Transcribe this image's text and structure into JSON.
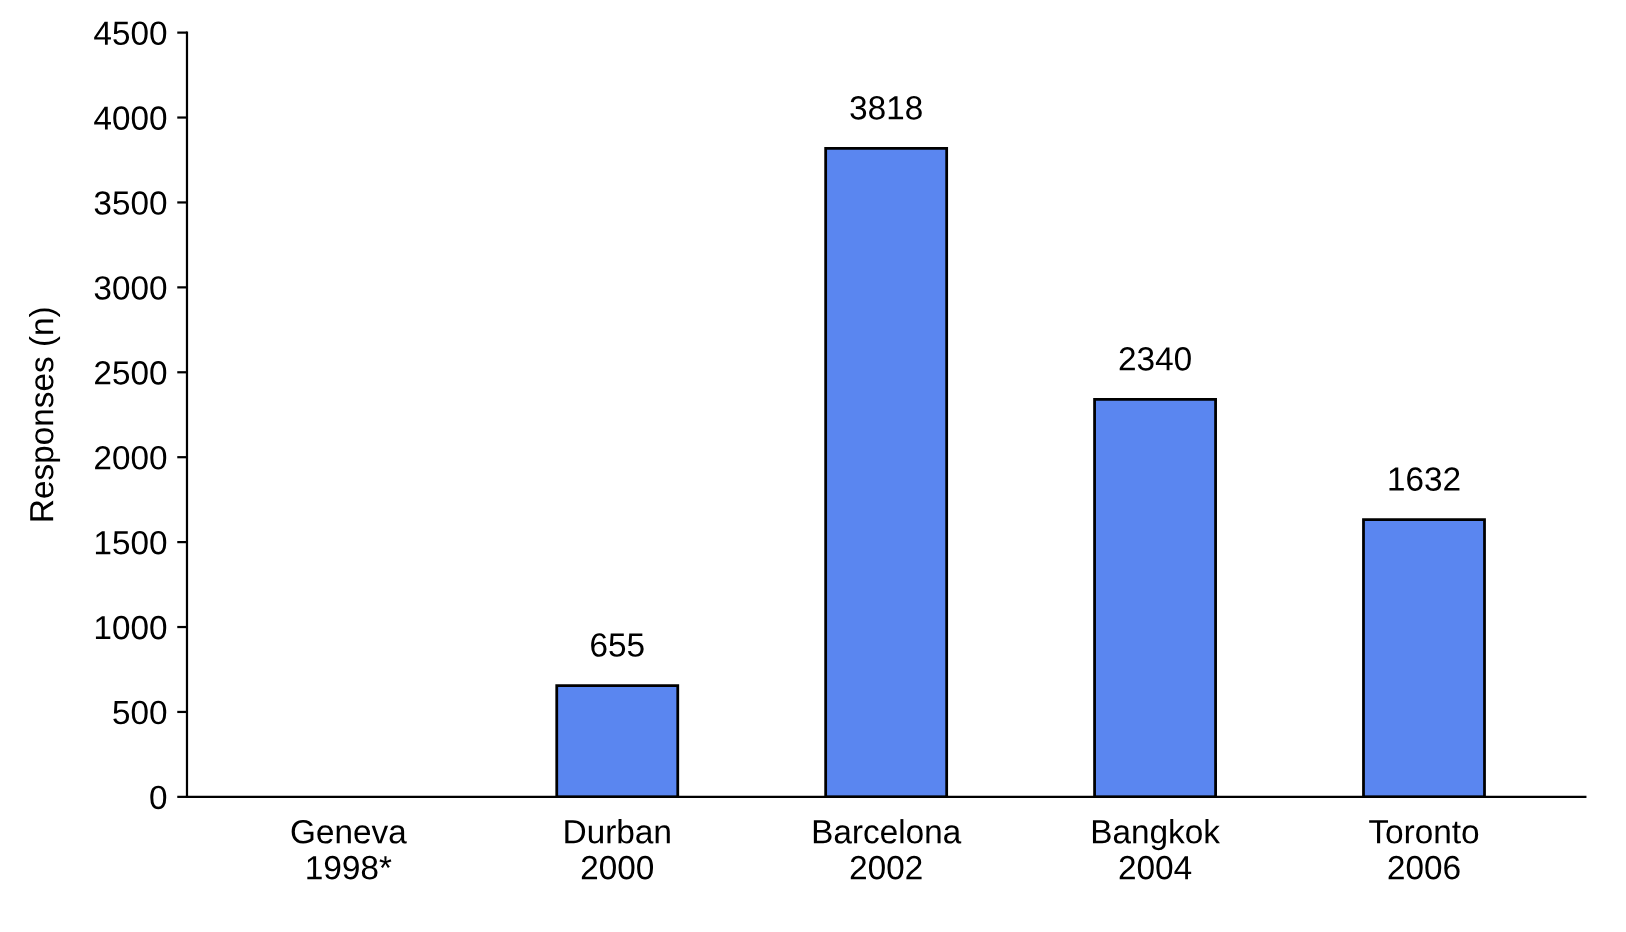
{
  "chart_data": {
    "type": "bar",
    "ylabel": "Responses (n)",
    "categories": [
      "Geneva\n1998*",
      "Durban\n2000",
      "Barcelona\n2002",
      "Bangkok\n2004",
      "Toronto\n2006"
    ],
    "values": [
      null,
      655,
      3818,
      2340,
      1632
    ],
    "color": "#5a86f0",
    "ylim": [
      0,
      4500
    ],
    "yticks": [
      0,
      500,
      1000,
      1500,
      2000,
      2500,
      3000,
      3500,
      4000,
      4500
    ],
    "data_labels": true,
    "grid": false,
    "legend": false
  }
}
